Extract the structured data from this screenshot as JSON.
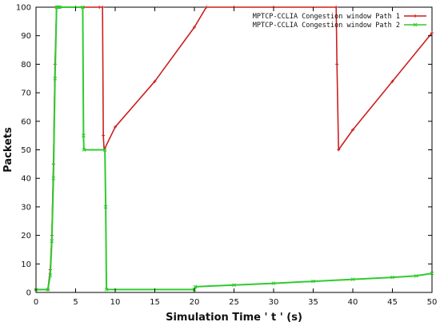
{
  "chart_data": {
    "type": "line",
    "title": "",
    "xlabel": "Simulation Time ' t ' (s)",
    "ylabel": "Packets",
    "xlim": [
      0,
      50
    ],
    "ylim": [
      0,
      100
    ],
    "xticks": [
      0,
      5,
      10,
      15,
      20,
      25,
      30,
      35,
      40,
      45,
      50
    ],
    "yticks": [
      0,
      10,
      20,
      30,
      40,
      50,
      60,
      70,
      80,
      90,
      100
    ],
    "grid": false,
    "legend_position": "top-right",
    "series": [
      {
        "name": "MPTCP-CCLIA Congestion window Path 1",
        "color": "#cc1f1f",
        "marker": "plus",
        "x": [
          0,
          1.5,
          1.8,
          2.0,
          2.2,
          2.4,
          2.6,
          2.8,
          3.0,
          5.0,
          8.0,
          8.4,
          8.5,
          8.6,
          10,
          15,
          20,
          21.5,
          25,
          30,
          37.9,
          38.0,
          38.2,
          40,
          45,
          50
        ],
        "y": [
          1,
          1,
          8,
          20,
          45,
          80,
          100,
          100,
          100,
          100,
          100,
          100,
          55,
          50,
          58,
          74,
          93,
          100,
          100,
          100,
          100,
          80,
          50,
          57,
          74,
          91
        ]
      },
      {
        "name": "MPTCP-CCLIA Congestion window Path 2",
        "color": "#2ecc2e",
        "marker": "x",
        "x": [
          0,
          1.5,
          1.8,
          2.0,
          2.2,
          2.4,
          2.6,
          2.8,
          3.0,
          5.9,
          6.0,
          6.05,
          8.7,
          8.8,
          8.9,
          20.0,
          20.1,
          25,
          30,
          35,
          40,
          45,
          48,
          50
        ],
        "y": [
          1,
          1,
          6,
          18,
          40,
          75,
          100,
          100,
          100,
          100,
          55,
          50,
          50,
          30,
          1,
          1,
          2,
          2.6,
          3.2,
          3.9,
          4.6,
          5.3,
          5.8,
          6.7
        ]
      }
    ]
  }
}
